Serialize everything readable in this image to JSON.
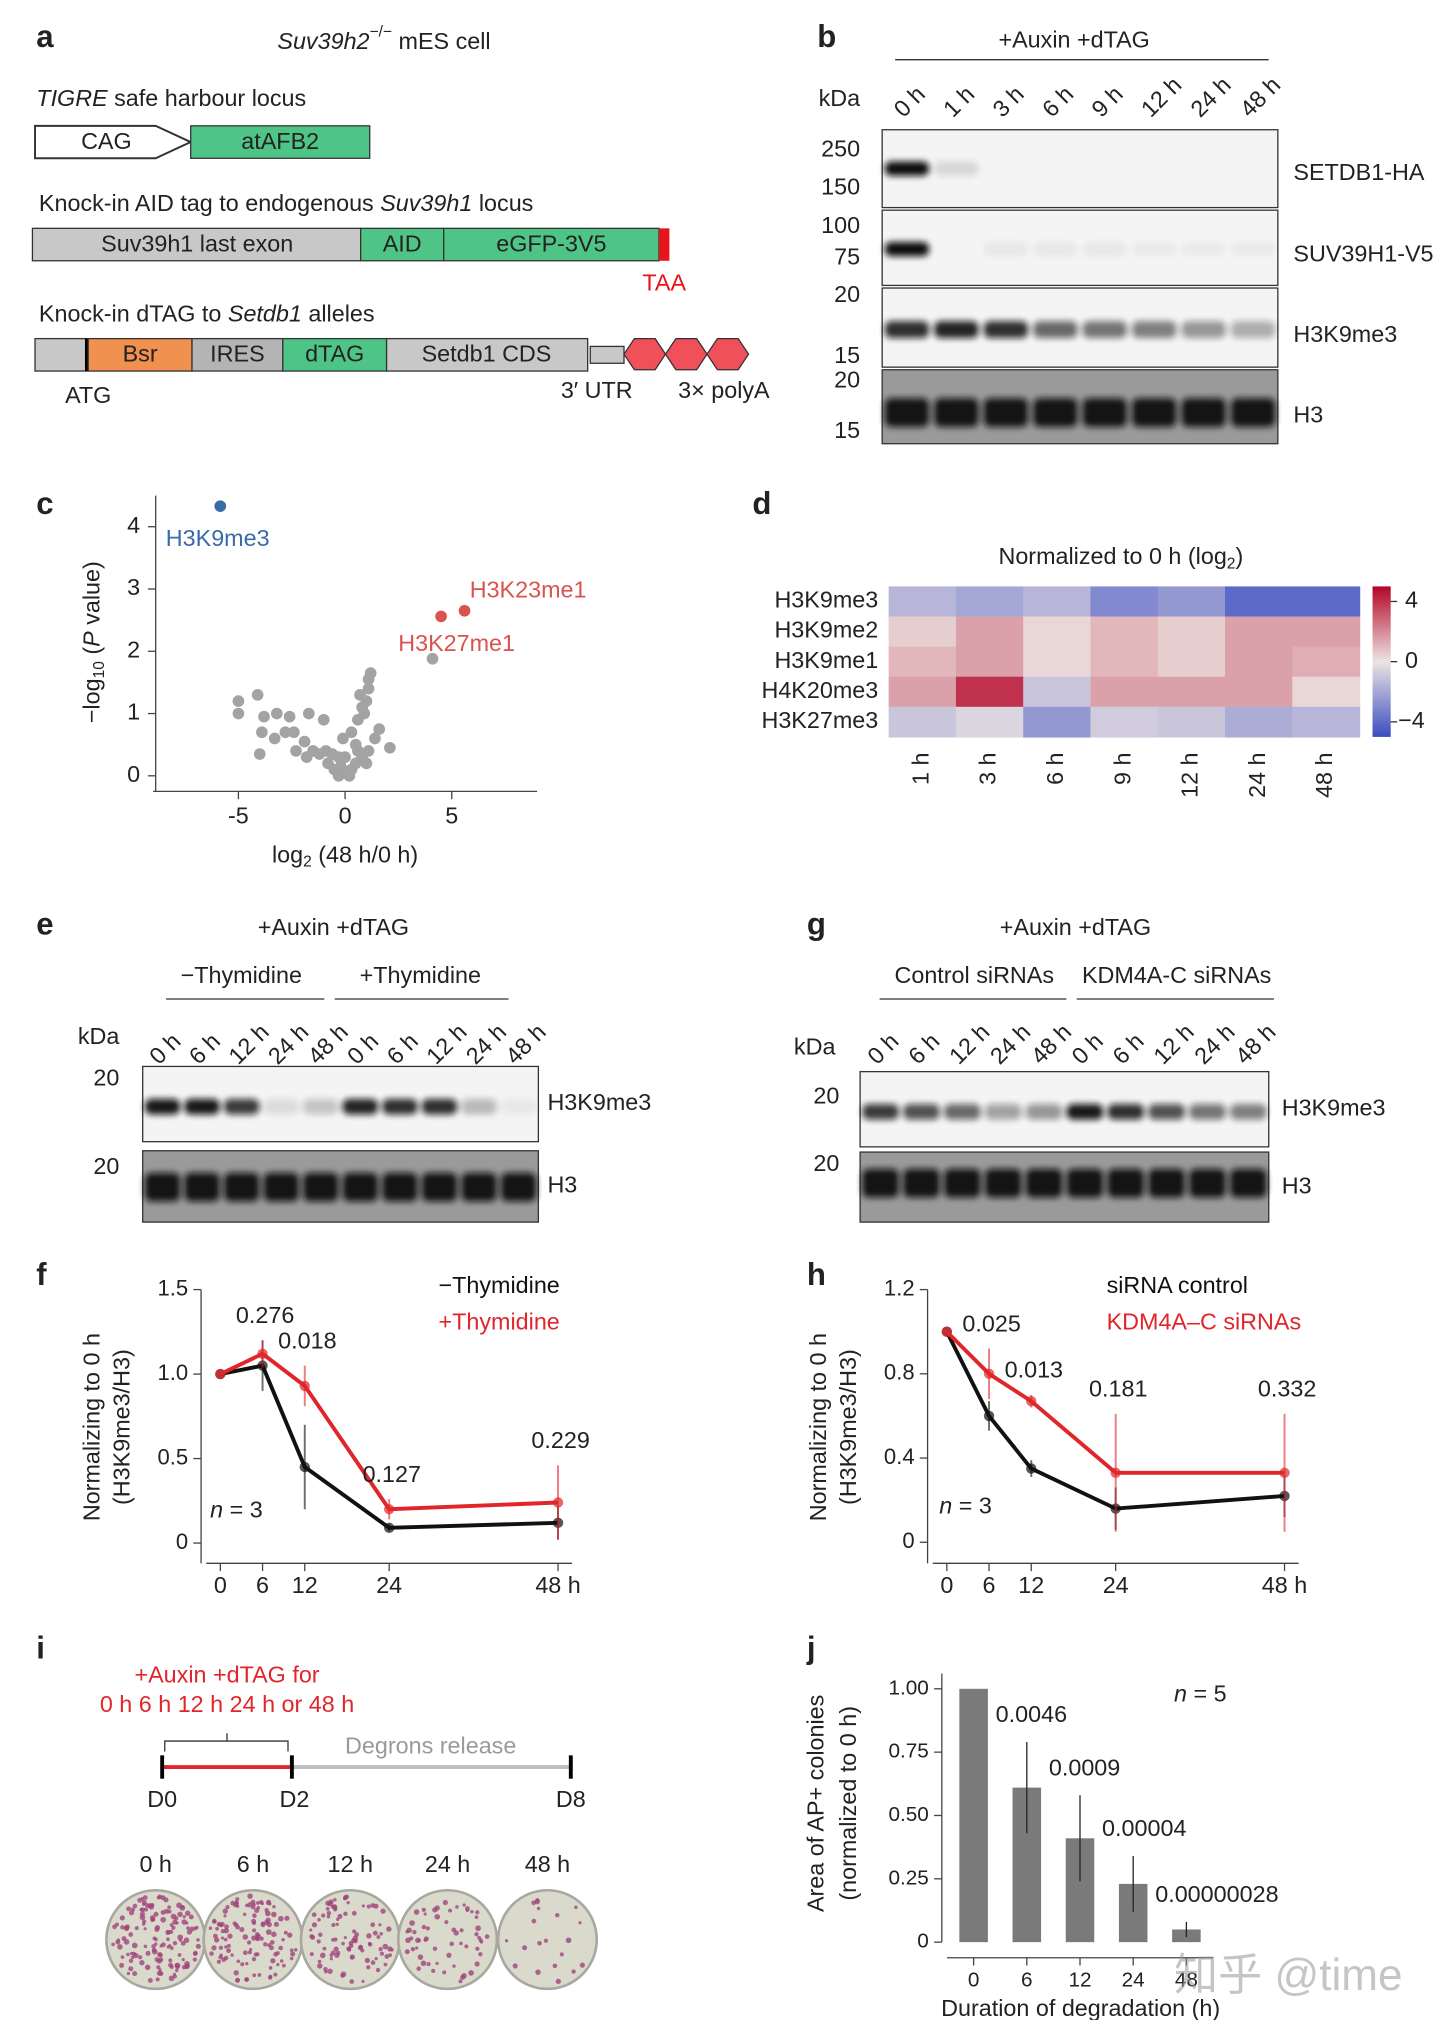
{
  "panel_labels": [
    "a",
    "b",
    "c",
    "d",
    "e",
    "f",
    "g",
    "h",
    "i",
    "j"
  ],
  "a": {
    "title_gene": "Suv39h2",
    "title_sup": "−/−",
    "title_rest": " mES cell",
    "locus1_italic": "TIGRE",
    "locus1_rest": " safe harbour locus",
    "cag": "CAG",
    "atafb2": "atAFB2",
    "locus2_pre": "Knock-in AID tag to endogenous ",
    "locus2_italic": "Suv39h1",
    "locus2_post": " locus",
    "exon": "Suv39h1 last exon",
    "aid": "AID",
    "egfp": "eGFP-3V5",
    "taa": "TAA",
    "locus3_pre": "Knock-in dTAG to ",
    "locus3_italic": "Setdb1",
    "locus3_post": " alleles",
    "bsr": "Bsr",
    "ires": "IRES",
    "dtag": "dTAG",
    "cds": "Setdb1 CDS",
    "atg": "ATG",
    "utr": "3′ UTR",
    "polya": "3× polyA"
  },
  "b": {
    "treatment": "+Auxin +dTAG",
    "kda": "kDa",
    "lanes": [
      "0 h",
      "1 h",
      "3 h",
      "6 h",
      "9 h",
      "12 h",
      "24 h",
      "48 h"
    ],
    "markers": [
      250,
      150,
      100,
      75,
      20,
      15,
      20,
      15
    ],
    "proteins": [
      "SETDB1-HA",
      "SUV39H1-V5",
      "H3K9me3",
      "H3"
    ]
  },
  "e": {
    "treatment": "+Auxin +dTAG",
    "groups": [
      "−Thymidine",
      "+Thymidine"
    ],
    "kda": "kDa",
    "lanes": [
      "0 h",
      "6 h",
      "12 h",
      "24 h",
      "48 h",
      "0 h",
      "6 h",
      "12 h",
      "24 h",
      "48 h"
    ],
    "markers": [
      20,
      20
    ],
    "proteins": [
      "H3K9me3",
      "H3"
    ]
  },
  "g": {
    "treatment": "+Auxin +dTAG",
    "groups": [
      "Control siRNAs",
      "KDM4A-C siRNAs"
    ],
    "kda": "kDa",
    "lanes": [
      "0 h",
      "6 h",
      "12 h",
      "24 h",
      "48 h",
      "0 h",
      "6 h",
      "12 h",
      "24 h",
      "48 h"
    ],
    "markers": [
      20,
      20
    ],
    "proteins": [
      "H3K9me3",
      "H3"
    ]
  },
  "i": {
    "treatment": "+Auxin +dTAG for",
    "times": "0 h 6 h 12 h 24 h or 48 h",
    "release": "Degrons release",
    "days": [
      "D0",
      "D2",
      "D8"
    ],
    "wells": [
      "0 h",
      "6 h",
      "12 h",
      "24 h",
      "48 h"
    ]
  },
  "watermark": "知乎 @time",
  "chart_data": [
    {
      "type": "scatter",
      "color": "#a3a3a3",
      "x": [
        -5.0,
        -4.1,
        -5.0,
        -3.8,
        -3.2,
        -2.6,
        -1.7,
        -3.9,
        -3.3,
        -4.0,
        -2.8,
        -2.4,
        -1.9,
        -1.0,
        -1.5,
        -1.2,
        -0.9,
        -0.6,
        -0.3,
        0,
        -0.2,
        0,
        0.3,
        0.5,
        -0.5,
        -1.8,
        -2.3,
        -0.8,
        0.2,
        -0.3,
        0.6,
        0.8,
        1.0,
        1.1,
        0.3,
        0.6,
        0.8,
        1.0,
        1.1,
        1.1,
        1.2,
        0.9,
        0.7,
        2.1,
        1.4,
        1.6,
        0.5,
        -0.1,
        4.1
      ],
      "values": [
        1.2,
        1.3,
        1.0,
        0.95,
        1.0,
        0.95,
        1.0,
        0.7,
        0.6,
        0.35,
        0.7,
        0.7,
        0.55,
        0.9,
        0.4,
        0.35,
        0.4,
        0.35,
        0.3,
        0.3,
        0.15,
        0.05,
        0.1,
        0.2,
        0.1,
        0.3,
        0.4,
        0.2,
        0.0,
        0.0,
        0.4,
        0.3,
        0.2,
        0.4,
        0.7,
        0.9,
        1.1,
        1.2,
        1.4,
        1.55,
        1.65,
        1.0,
        1.3,
        0.45,
        0.6,
        0.75,
        0.5,
        0.6,
        1.88
      ],
      "highlights": {
        "labels": [
          "H3K9me3",
          "H3K23me1",
          "H3K27me1"
        ],
        "x": [
          -5.85,
          5.6,
          4.5
        ],
        "values": [
          4.33,
          2.65,
          2.56
        ],
        "colors": [
          "#3a6aa8",
          "#d9534f",
          "#d9534f"
        ]
      },
      "xlim": [
        -9,
        9
      ],
      "ylim": [
        -0.25,
        4.5
      ],
      "xticks": [
        -5,
        0,
        5
      ],
      "yticks": [
        0,
        1,
        2,
        3,
        4
      ],
      "xlabel": {
        "pre": "log",
        "sub": "2",
        "post": " (48 h/0 h)"
      },
      "ylabel": {
        "pre": "−log",
        "sub": "10",
        "mid": " (",
        "italic": "P",
        "post": " value)"
      }
    },
    {
      "type": "heatmap",
      "title": {
        "pre": "Normalized to 0 h (log",
        "sub": "2",
        "post": ")"
      },
      "rows": [
        "H3K9me3",
        "H3K9me2",
        "H3K9me1",
        "H4K20me3",
        "H3K27me3"
      ],
      "categories": [
        "1 h",
        "3 h",
        "6 h",
        "9 h",
        "12 h",
        "24 h",
        "48 h"
      ],
      "values": [
        [
          -1.5,
          -2,
          -1.5,
          -3,
          -2.5,
          -4,
          -4
        ],
        [
          0.5,
          1.5,
          0.3,
          1,
          0.5,
          1.5,
          1.5
        ],
        [
          1,
          1.5,
          0.3,
          1,
          0.5,
          1.5,
          1.2
        ],
        [
          1.5,
          4,
          -1,
          1.5,
          1.5,
          1.5,
          0.3
        ],
        [
          -1,
          -0.5,
          -2.5,
          -0.8,
          -1,
          -1.8,
          -1.5
        ]
      ],
      "clim": [
        -5,
        5
      ],
      "cticks": [
        4,
        0,
        {
          "value": -4,
          "label": "−4"
        }
      ],
      "colors": [
        "#3b4cc0",
        "#ece4e2",
        "#b40426"
      ]
    },
    {
      "type": "line",
      "x": [
        0,
        6,
        12,
        24,
        48
      ],
      "series": [
        {
          "name": "−Thymidine",
          "color": "#111111",
          "values": [
            1.0,
            1.05,
            0.45,
            0.09,
            0.12
          ],
          "errors": [
            0,
            0.15,
            0.25,
            0.02,
            0.1
          ]
        },
        {
          "name": "+Thymidine",
          "color": "#e0262b",
          "values": [
            1.0,
            1.12,
            0.93,
            0.2,
            0.24
          ],
          "errors": [
            0,
            0.08,
            0.12,
            0.06,
            0.22
          ]
        }
      ],
      "p_values": [
        null,
        "0.276",
        "0.018",
        "0.127",
        "0.229"
      ],
      "n_label": {
        "italic": "n",
        "rest": " = 3"
      },
      "ylabel": [
        "Normalizing to 0 h",
        "(H3K9me3/H3)"
      ],
      "xlim": [
        -2,
        50
      ],
      "ylim": [
        -0.12,
        1.5
      ],
      "xticks": [
        0,
        6,
        12,
        24,
        {
          "value": 48,
          "label": "48 h"
        }
      ],
      "yticks": [
        0,
        0.5,
        {
          "value": 1,
          "label": "1.0"
        },
        1.5
      ]
    },
    {
      "type": "line",
      "x": [
        0,
        6,
        12,
        24,
        48
      ],
      "series": [
        {
          "name": "siRNA control",
          "color": "#111111",
          "values": [
            1.0,
            0.6,
            0.35,
            0.16,
            0.22
          ],
          "errors": [
            0,
            0.07,
            0.04,
            0.1,
            0.1
          ]
        },
        {
          "name": "KDM4A–C siRNAs",
          "color": "#e0262b",
          "values": [
            1.0,
            0.8,
            0.67,
            0.33,
            0.33
          ],
          "errors": [
            0,
            0.12,
            0.03,
            0.28,
            0.28
          ]
        }
      ],
      "p_values": [
        null,
        "0.025",
        "0.013",
        "0.181",
        "0.332"
      ],
      "n_label": {
        "italic": "n",
        "rest": " = 3"
      },
      "ylabel": [
        "Normalizing to 0 h",
        "(H3K9me3/H3)"
      ],
      "xlim": [
        -2,
        50
      ],
      "ylim": [
        -0.1,
        1.2
      ],
      "xticks": [
        0,
        6,
        12,
        24,
        {
          "value": 48,
          "label": "48 h"
        }
      ],
      "yticks": [
        0,
        0.4,
        0.8,
        1.2
      ]
    },
    {
      "type": "bar",
      "categories": [
        "0",
        "6",
        "12",
        "24",
        "48"
      ],
      "values": [
        1.0,
        0.61,
        0.41,
        0.23,
        0.05
      ],
      "errors": [
        0,
        0.18,
        0.17,
        0.11,
        0.03
      ],
      "p_values": [
        null,
        "0.0046",
        "0.0009",
        "0.00004",
        "0.00000028"
      ],
      "color": "#7a7a7a",
      "n_label": {
        "italic": "n",
        "rest": " = 5"
      },
      "xlabel": "Duration of degradation (h)",
      "ylabel": [
        "Area of AP+ colonies",
        "(normalized to 0 h)"
      ],
      "ylim": [
        0,
        1.06
      ],
      "yticks": [
        0,
        0.25,
        {
          "value": 0.5,
          "label": "0.50"
        },
        0.75,
        {
          "value": 1,
          "label": "1.00"
        }
      ]
    }
  ]
}
